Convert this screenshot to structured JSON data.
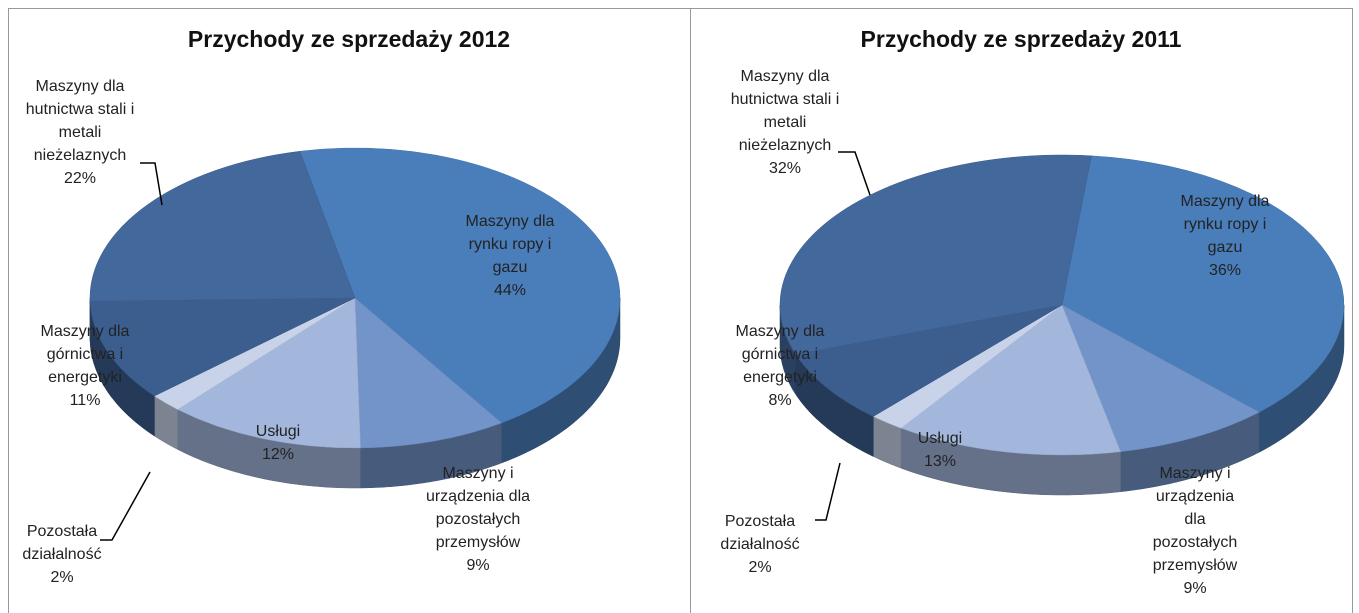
{
  "chart_data": [
    {
      "type": "pie",
      "title": "Przychody ze sprzedaży 2012",
      "categories": [
        "Maszyny dla rynku ropy i gazu",
        "Maszyny i urządzenia dla pozostałych przemysłów",
        "Usługi",
        "Pozostała działalność",
        "Maszyny dla górnictwa i energetyki",
        "Maszyny dla hutnictwa stali i metali nieżelaznych"
      ],
      "values": [
        44,
        9,
        12,
        2,
        11,
        22
      ],
      "value_labels": [
        "44%",
        "9%",
        "12%",
        "2%",
        "11%",
        "22%"
      ],
      "colors": [
        "#4a7ebb",
        "#7394c8",
        "#a3b6db",
        "#c8d3ea",
        "#3b5e8f",
        "#43689c"
      ]
    },
    {
      "type": "pie",
      "title": "Przychody ze sprzedaży 2011",
      "categories": [
        "Maszyny dla rynku ropy i gazu",
        "Maszyny i urządzenia dla pozostałych przemysłów",
        "Usługi",
        "Pozostała działalność",
        "Maszyny dla górnictwa i energetyki",
        "Maszyny dla hutnictwa stali i metali nieżelaznych"
      ],
      "values": [
        36,
        9,
        13,
        2,
        8,
        32
      ],
      "value_labels": [
        "36%",
        "9%",
        "13%",
        "2%",
        "8%",
        "32%"
      ],
      "colors": [
        "#4a7ebb",
        "#7394c8",
        "#a3b6db",
        "#c8d3ea",
        "#3b5e8f",
        "#43689c"
      ]
    }
  ]
}
